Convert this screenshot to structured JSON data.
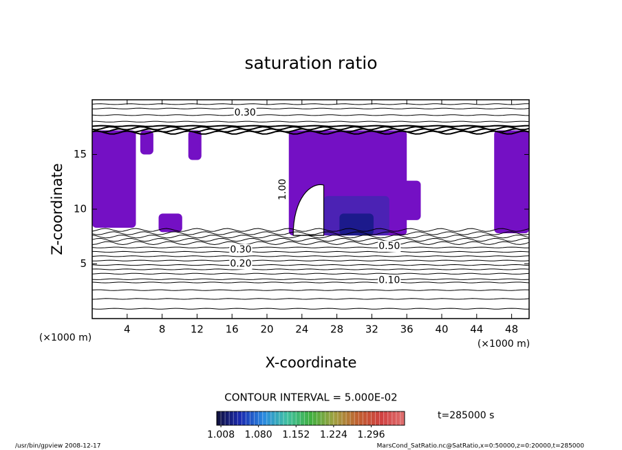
{
  "chart_data": {
    "type": "contour",
    "title": "saturation ratio",
    "xlabel": "X-coordinate",
    "ylabel": "Z-coordinate",
    "x_unit": "(×1000 m)",
    "y_unit": "(×1000 m)",
    "xlim": [
      0,
      50
    ],
    "xticks": [
      4,
      8,
      12,
      16,
      20,
      24,
      28,
      32,
      36,
      40,
      44,
      48
    ],
    "ylim": [
      0,
      20
    ],
    "yticks": [
      5,
      10,
      15
    ],
    "contour_interval_text": "CONTOUR INTERVAL = 5.000E-02",
    "contour_z": [
      0.9,
      1.8,
      2.6,
      3.3,
      3.6,
      4.1,
      4.5,
      4.9,
      5.3,
      5.7,
      6.1,
      6.5,
      6.9,
      7.2,
      7.5,
      7.8,
      8.1,
      17.0,
      17.2,
      17.4,
      17.6,
      18.0,
      18.6,
      19.2,
      19.6
    ],
    "contour_labels": [
      {
        "label": "0.30",
        "x": 17.5,
        "z": 18.8,
        "vertical": false
      },
      {
        "label": "0.30",
        "x": 17.0,
        "z": 6.3,
        "vertical": false
      },
      {
        "label": "0.20",
        "x": 17.0,
        "z": 5.0,
        "vertical": false
      },
      {
        "label": "0.10",
        "x": 34.0,
        "z": 3.5,
        "vertical": false
      },
      {
        "label": "0.50",
        "x": 34.0,
        "z": 6.6,
        "vertical": false
      },
      {
        "label": "1.00",
        "x": 21.8,
        "z": 11.8,
        "vertical": true
      }
    ],
    "shaded_regions": [
      {
        "x": [
          0,
          5
        ],
        "z": [
          8.3,
          17.2
        ],
        "value": 1.01,
        "color": "#7410c4"
      },
      {
        "x": [
          5.5,
          7
        ],
        "z": [
          15,
          17.2
        ],
        "value": 1.01,
        "color": "#7410c4"
      },
      {
        "x": [
          7.6,
          10.3
        ],
        "z": [
          7.9,
          9.6
        ],
        "value": 1.01,
        "color": "#7410c4"
      },
      {
        "x": [
          11,
          12.5
        ],
        "z": [
          14.5,
          17.2
        ],
        "value": 1.01,
        "color": "#7410c4"
      },
      {
        "x": [
          22.5,
          36
        ],
        "z": [
          7.6,
          17.2
        ],
        "value": 1.01,
        "color": "#7410c4"
      },
      {
        "x": [
          35,
          37.6
        ],
        "z": [
          9,
          12.6
        ],
        "value": 1.01,
        "color": "#7410c4"
      },
      {
        "x": [
          26.5,
          34
        ],
        "z": [
          7.6,
          11.2
        ],
        "value": 1.05,
        "color": "#4b22b4"
      },
      {
        "x": [
          28.3,
          32.2
        ],
        "z": [
          7.6,
          9.6
        ],
        "value": 1.1,
        "color": "#1c1a8c"
      },
      {
        "x": [
          46,
          50
        ],
        "z": [
          7.8,
          17.2
        ],
        "value": 1.01,
        "color": "#7410c4"
      }
    ],
    "colorbar": {
      "clim": [
        1.0,
        1.36
      ],
      "ticks": [
        1.008,
        {
          "value": 1.08,
          "label": "1.080"
        },
        1.152,
        1.224,
        1.296
      ],
      "colors": [
        "#10103a",
        "#1a2ab0",
        "#2a8ae0",
        "#40c0a0",
        "#40b040",
        "#a0a040",
        "#c06030",
        "#d04040",
        "#e07070"
      ]
    },
    "time_label": "t=285000 s",
    "footer_left": "/usr/bin/gpview  2008-12-17",
    "footer_right": "MarsCond_SatRatio.nc@SatRatio,x=0:50000,z=0:20000,t=285000"
  }
}
